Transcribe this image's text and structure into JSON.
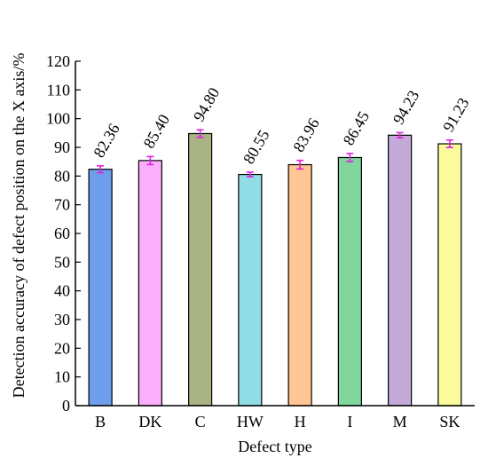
{
  "chart_data": {
    "type": "bar",
    "xlabel": "Defect type",
    "ylabel": "Detection accuracy of defect position on the X axis/%",
    "categories": [
      "B",
      "DK",
      "C",
      "HW",
      "H",
      "I",
      "M",
      "SK"
    ],
    "values": [
      82.36,
      85.4,
      94.8,
      80.55,
      83.96,
      86.45,
      94.23,
      91.23
    ],
    "value_labels": [
      "82.36",
      "85.40",
      "94.80",
      "80.55",
      "83.96",
      "86.45",
      "94.23",
      "91.23"
    ],
    "errors": [
      1.2,
      1.4,
      1.3,
      0.8,
      1.5,
      1.4,
      0.9,
      1.3
    ],
    "bar_colors": [
      "#6f9fec",
      "#fbaefc",
      "#a9b383",
      "#90dde6",
      "#ffc592",
      "#80d69c",
      "#c4aad8",
      "#fbfb9c"
    ],
    "error_bar_color": "#e020e0",
    "ylim": [
      0,
      120
    ],
    "yticks": [
      0,
      10,
      20,
      30,
      40,
      50,
      60,
      70,
      80,
      90,
      100,
      110,
      120
    ],
    "grid": false,
    "legend": "none"
  }
}
